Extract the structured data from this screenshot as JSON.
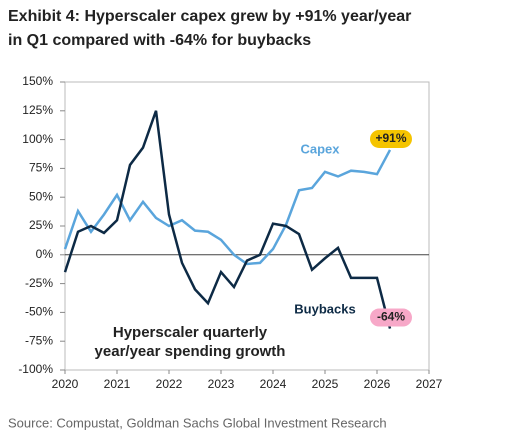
{
  "chart_data": {
    "type": "line",
    "title": [
      "Exhibit 4: Hyperscaler capex grew by +91% year/year",
      "in Q1 compared with -64% for buybacks"
    ],
    "inset_text": [
      "Hyperscaler quarterly",
      "year/year spending growth"
    ],
    "source": "Source: Compustat, Goldman Sachs Global Investment Research",
    "xlim": [
      2020,
      2027
    ],
    "xticks": [
      2020,
      2021,
      2022,
      2023,
      2024,
      2025,
      2026,
      2027
    ],
    "ylim": [
      -100,
      150
    ],
    "yticks": [
      {
        "value": -100,
        "label": "-100%"
      },
      {
        "value": -75,
        "label": "-75%"
      },
      {
        "value": -50,
        "label": "-50%"
      },
      {
        "value": -25,
        "label": "-25%"
      },
      {
        "value": 0,
        "label": "0%"
      },
      {
        "value": 25,
        "label": "25%"
      },
      {
        "value": 50,
        "label": "50%"
      },
      {
        "value": 75,
        "label": "75%"
      },
      {
        "value": 100,
        "label": "100%"
      },
      {
        "value": 125,
        "label": "125%"
      },
      {
        "value": 150,
        "label": "150%"
      }
    ],
    "series": [
      {
        "name": "Capex",
        "color": "#5aa5dc",
        "label_color": "#f5c400",
        "x": [
          2020,
          2020.25,
          2020.5,
          2020.75,
          2021,
          2021.25,
          2021.5,
          2021.75,
          2022,
          2022.25,
          2022.5,
          2022.75,
          2023,
          2023.25,
          2023.5,
          2023.75,
          2024,
          2024.25,
          2024.5,
          2024.75,
          2025,
          2025.25,
          2025.5,
          2025.75,
          2026,
          2026.25
        ],
        "values": [
          5,
          38,
          20,
          35,
          52,
          30,
          46,
          32,
          25,
          30,
          21,
          20,
          13,
          0,
          -8,
          -7,
          5,
          26,
          56,
          58,
          72,
          68,
          73,
          72,
          70,
          91
        ],
        "value_labels": [
          null,
          null,
          null,
          null,
          null,
          null,
          null,
          null,
          null,
          null,
          null,
          null,
          null,
          null,
          null,
          null,
          null,
          null,
          null,
          null,
          null,
          null,
          null,
          null,
          null,
          "+91%"
        ]
      },
      {
        "name": "Buybacks",
        "color": "#0d2a45",
        "label_color": "#f7a8c8",
        "x": [
          2020,
          2020.25,
          2020.5,
          2020.75,
          2021,
          2021.25,
          2021.5,
          2021.75,
          2022,
          2022.25,
          2022.5,
          2022.75,
          2023,
          2023.25,
          2023.5,
          2023.75,
          2024,
          2024.25,
          2024.5,
          2024.75,
          2025,
          2025.25,
          2025.5,
          2025.75,
          2026,
          2026.25
        ],
        "values": [
          -15,
          20,
          25,
          19,
          30,
          78,
          93,
          125,
          35,
          -7,
          -30,
          -42,
          -15,
          -28,
          -5,
          0,
          27,
          25,
          18,
          -13,
          -3,
          6,
          -20,
          -20,
          -20,
          -64
        ],
        "value_labels": [
          null,
          null,
          null,
          null,
          null,
          null,
          null,
          null,
          null,
          null,
          null,
          null,
          null,
          null,
          null,
          null,
          null,
          null,
          null,
          null,
          null,
          null,
          null,
          null,
          null,
          "-64%"
        ]
      }
    ]
  }
}
